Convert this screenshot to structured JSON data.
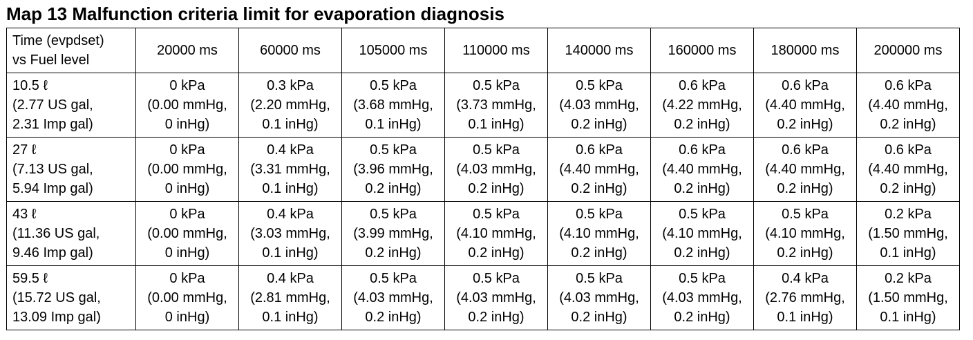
{
  "title": "Map 13 Malfunction criteria limit for evaporation diagnosis",
  "table": {
    "header": [
      [
        "Time (evpdset)",
        "vs Fuel level"
      ],
      "20000 ms",
      "60000 ms",
      "105000 ms",
      "110000 ms",
      "140000 ms",
      "160000 ms",
      "180000 ms",
      "200000 ms"
    ],
    "rows": [
      [
        [
          "10.5 ℓ",
          "(2.77 US gal,",
          "2.31 Imp gal)"
        ],
        [
          "0 kPa",
          "(0.00 mmHg,",
          "0 inHg)"
        ],
        [
          "0.3 kPa",
          "(2.20 mmHg,",
          "0.1 inHg)"
        ],
        [
          "0.5 kPa",
          "(3.68 mmHg,",
          "0.1 inHg)"
        ],
        [
          "0.5 kPa",
          "(3.73 mmHg,",
          "0.1 inHg)"
        ],
        [
          "0.5 kPa",
          "(4.03 mmHg,",
          "0.2 inHg)"
        ],
        [
          "0.6 kPa",
          "(4.22 mmHg,",
          "0.2 inHg)"
        ],
        [
          "0.6 kPa",
          "(4.40 mmHg,",
          "0.2 inHg)"
        ],
        [
          "0.6 kPa",
          "(4.40 mmHg,",
          "0.2 inHg)"
        ]
      ],
      [
        [
          "27 ℓ",
          "(7.13 US gal,",
          "5.94 Imp gal)"
        ],
        [
          "0 kPa",
          "(0.00 mmHg,",
          "0 inHg)"
        ],
        [
          "0.4 kPa",
          "(3.31 mmHg,",
          "0.1 inHg)"
        ],
        [
          "0.5 kPa",
          "(3.96 mmHg,",
          "0.2 inHg)"
        ],
        [
          "0.5 kPa",
          "(4.03 mmHg,",
          "0.2 inHg)"
        ],
        [
          "0.6 kPa",
          "(4.40 mmHg,",
          "0.2 inHg)"
        ],
        [
          "0.6 kPa",
          "(4.40 mmHg,",
          "0.2 inHg)"
        ],
        [
          "0.6 kPa",
          "(4.40 mmHg,",
          "0.2 inHg)"
        ],
        [
          "0.6 kPa",
          "(4.40 mmHg,",
          "0.2 inHg)"
        ]
      ],
      [
        [
          "43 ℓ",
          "(11.36 US gal,",
          "9.46 Imp gal)"
        ],
        [
          "0 kPa",
          "(0.00 mmHg,",
          "0 inHg)"
        ],
        [
          "0.4 kPa",
          "(3.03 mmHg,",
          "0.1 inHg)"
        ],
        [
          "0.5 kPa",
          "(3.99 mmHg,",
          "0.2 inHg)"
        ],
        [
          "0.5 kPa",
          "(4.10 mmHg,",
          "0.2 inHg)"
        ],
        [
          "0.5 kPa",
          "(4.10 mmHg,",
          "0.2 inHg)"
        ],
        [
          "0.5 kPa",
          "(4.10 mmHg,",
          "0.2 inHg)"
        ],
        [
          "0.5 kPa",
          "(4.10 mmHg,",
          "0.2 inHg)"
        ],
        [
          "0.2 kPa",
          "(1.50 mmHg,",
          "0.1 inHg)"
        ]
      ],
      [
        [
          "59.5 ℓ",
          "(15.72 US gal,",
          "13.09 Imp gal)"
        ],
        [
          "0 kPa",
          "(0.00 mmHg,",
          "0 inHg)"
        ],
        [
          "0.4 kPa",
          "(2.81 mmHg,",
          "0.1 inHg)"
        ],
        [
          "0.5 kPa",
          "(4.03 mmHg,",
          "0.2 inHg)"
        ],
        [
          "0.5 kPa",
          "(4.03 mmHg,",
          "0.2 inHg)"
        ],
        [
          "0.5 kPa",
          "(4.03 mmHg,",
          "0.2 inHg)"
        ],
        [
          "0.5 kPa",
          "(4.03 mmHg,",
          "0.2 inHg)"
        ],
        [
          "0.4 kPa",
          "(2.76 mmHg,",
          "0.1 inHg)"
        ],
        [
          "0.2 kPa",
          "(1.50 mmHg,",
          "0.1 inHg)"
        ]
      ]
    ]
  }
}
